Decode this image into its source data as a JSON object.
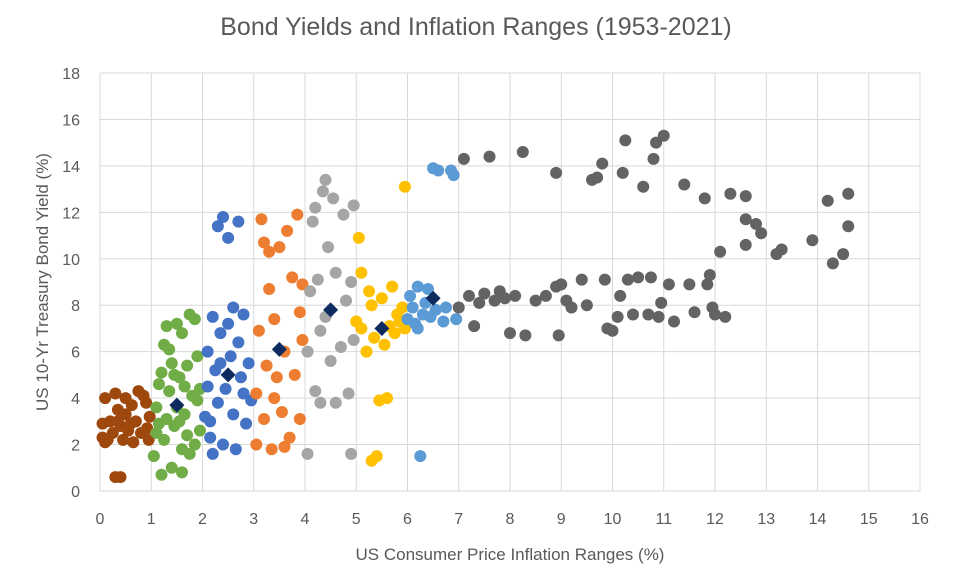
{
  "chart_data": {
    "type": "scatter",
    "title": "Bond Yields and Inflation Ranges (1953-2021)",
    "xlabel": "US Consumer Price Inflation Ranges (%)",
    "ylabel": "US 10-Yr Treasury Bond Yield (%)",
    "xlim": [
      0,
      16
    ],
    "ylim": [
      0,
      18
    ],
    "xticks": [
      "0",
      "1",
      "2",
      "3",
      "4",
      "5",
      "6",
      "7",
      "8",
      "9",
      "10",
      "11",
      "12",
      "13",
      "14",
      "15",
      "16"
    ],
    "yticks": [
      "0",
      "2",
      "4",
      "6",
      "8",
      "10",
      "12",
      "14",
      "16",
      "18"
    ],
    "grid": true,
    "legend": "none",
    "colors": {
      "brown": "#9e480e",
      "green": "#70ad47",
      "blue": "#4472c4",
      "orange": "#ed7d31",
      "gray": "#a5a5a5",
      "yellow": "#ffc000",
      "lightblue": "#5b9bd5",
      "darkgray": "#636363",
      "median": "#0d2b5e"
    },
    "series": [
      {
        "color_key": "brown",
        "marker": "circle",
        "points": [
          [
            0.05,
            2.3
          ],
          [
            0.05,
            2.9
          ],
          [
            0.1,
            4.0
          ],
          [
            0.15,
            2.2
          ],
          [
            0.2,
            3.0
          ],
          [
            0.25,
            2.5
          ],
          [
            0.3,
            4.2
          ],
          [
            0.35,
            3.5
          ],
          [
            0.4,
            2.8
          ],
          [
            0.45,
            2.2
          ],
          [
            0.5,
            3.3
          ],
          [
            0.55,
            2.6
          ],
          [
            0.6,
            2.9
          ],
          [
            0.62,
            3.7
          ],
          [
            0.65,
            2.1
          ],
          [
            0.7,
            3.0
          ],
          [
            0.75,
            4.3
          ],
          [
            0.8,
            2.5
          ],
          [
            0.85,
            4.1
          ],
          [
            0.9,
            3.8
          ],
          [
            0.92,
            2.7
          ],
          [
            0.95,
            2.2
          ],
          [
            0.97,
            3.2
          ],
          [
            0.3,
            0.6
          ],
          [
            0.4,
            0.6
          ],
          [
            0.35,
            3.0
          ],
          [
            0.1,
            2.1
          ],
          [
            0.5,
            4.0
          ]
        ]
      },
      {
        "color_key": "green",
        "marker": "circle",
        "points": [
          [
            1.05,
            1.5
          ],
          [
            1.1,
            2.5
          ],
          [
            1.1,
            3.6
          ],
          [
            1.15,
            4.6
          ],
          [
            1.2,
            0.7
          ],
          [
            1.2,
            5.1
          ],
          [
            1.25,
            2.2
          ],
          [
            1.3,
            3.1
          ],
          [
            1.3,
            7.1
          ],
          [
            1.35,
            4.3
          ],
          [
            1.4,
            1.0
          ],
          [
            1.4,
            5.5
          ],
          [
            1.45,
            2.8
          ],
          [
            1.5,
            3.6
          ],
          [
            1.5,
            7.2
          ],
          [
            1.55,
            4.9
          ],
          [
            1.6,
            1.8
          ],
          [
            1.6,
            0.8
          ],
          [
            1.65,
            3.3
          ],
          [
            1.7,
            2.4
          ],
          [
            1.7,
            5.4
          ],
          [
            1.75,
            7.6
          ],
          [
            1.8,
            4.1
          ],
          [
            1.85,
            2.0
          ],
          [
            1.85,
            7.4
          ],
          [
            1.9,
            3.9
          ],
          [
            1.9,
            5.8
          ],
          [
            1.95,
            2.6
          ],
          [
            1.95,
            4.4
          ],
          [
            1.25,
            6.3
          ],
          [
            1.35,
            6.1
          ],
          [
            1.55,
            3.0
          ],
          [
            1.65,
            4.5
          ],
          [
            1.75,
            1.6
          ],
          [
            1.15,
            2.9
          ],
          [
            1.45,
            5.0
          ],
          [
            1.6,
            6.8
          ]
        ]
      },
      {
        "color_key": "blue",
        "marker": "circle",
        "points": [
          [
            2.05,
            3.2
          ],
          [
            2.1,
            4.5
          ],
          [
            2.1,
            6.0
          ],
          [
            2.15,
            2.3
          ],
          [
            2.2,
            7.5
          ],
          [
            2.25,
            5.2
          ],
          [
            2.3,
            3.8
          ],
          [
            2.3,
            11.4
          ],
          [
            2.35,
            6.8
          ],
          [
            2.4,
            2.0
          ],
          [
            2.4,
            11.8
          ],
          [
            2.45,
            4.4
          ],
          [
            2.5,
            10.9
          ],
          [
            2.5,
            7.2
          ],
          [
            2.55,
            5.8
          ],
          [
            2.6,
            3.3
          ],
          [
            2.65,
            1.8
          ],
          [
            2.7,
            6.4
          ],
          [
            2.7,
            11.6
          ],
          [
            2.75,
            4.9
          ],
          [
            2.8,
            7.6
          ],
          [
            2.85,
            2.9
          ],
          [
            2.9,
            5.5
          ],
          [
            2.95,
            3.9
          ],
          [
            2.2,
            1.6
          ],
          [
            2.6,
            7.9
          ],
          [
            2.8,
            4.2
          ],
          [
            2.35,
            5.5
          ],
          [
            2.15,
            3.0
          ]
        ]
      },
      {
        "color_key": "orange",
        "marker": "circle",
        "points": [
          [
            3.05,
            2.0
          ],
          [
            3.05,
            4.2
          ],
          [
            3.1,
            6.9
          ],
          [
            3.15,
            11.7
          ],
          [
            3.2,
            3.1
          ],
          [
            3.25,
            5.4
          ],
          [
            3.3,
            8.7
          ],
          [
            3.3,
            10.3
          ],
          [
            3.35,
            1.8
          ],
          [
            3.4,
            7.4
          ],
          [
            3.45,
            4.9
          ],
          [
            3.5,
            10.5
          ],
          [
            3.55,
            3.4
          ],
          [
            3.6,
            6.0
          ],
          [
            3.65,
            11.2
          ],
          [
            3.7,
            2.3
          ],
          [
            3.75,
            9.2
          ],
          [
            3.8,
            5.0
          ],
          [
            3.85,
            11.9
          ],
          [
            3.9,
            7.7
          ],
          [
            3.9,
            3.1
          ],
          [
            3.95,
            6.5
          ],
          [
            3.95,
            8.9
          ],
          [
            3.2,
            10.7
          ],
          [
            3.6,
            1.9
          ],
          [
            3.4,
            4.0
          ]
        ]
      },
      {
        "color_key": "gray",
        "marker": "circle",
        "points": [
          [
            4.05,
            1.6
          ],
          [
            4.05,
            6.0
          ],
          [
            4.1,
            8.6
          ],
          [
            4.15,
            11.6
          ],
          [
            4.2,
            4.3
          ],
          [
            4.25,
            9.1
          ],
          [
            4.3,
            3.8
          ],
          [
            4.35,
            12.9
          ],
          [
            4.4,
            13.4
          ],
          [
            4.4,
            7.5
          ],
          [
            4.45,
            10.5
          ],
          [
            4.5,
            5.6
          ],
          [
            4.55,
            12.6
          ],
          [
            4.6,
            9.4
          ],
          [
            4.7,
            6.2
          ],
          [
            4.75,
            11.9
          ],
          [
            4.8,
            8.2
          ],
          [
            4.85,
            4.2
          ],
          [
            4.9,
            1.6
          ],
          [
            4.95,
            12.3
          ],
          [
            4.95,
            6.5
          ],
          [
            4.9,
            9.0
          ],
          [
            4.2,
            12.2
          ],
          [
            4.6,
            3.8
          ],
          [
            4.3,
            6.9
          ]
        ]
      },
      {
        "color_key": "yellow",
        "marker": "circle",
        "points": [
          [
            5.0,
            7.3
          ],
          [
            5.05,
            10.9
          ],
          [
            5.1,
            9.4
          ],
          [
            5.2,
            6.0
          ],
          [
            5.25,
            8.6
          ],
          [
            5.3,
            1.3
          ],
          [
            5.35,
            6.6
          ],
          [
            5.4,
            1.5
          ],
          [
            5.45,
            3.9
          ],
          [
            5.5,
            8.3
          ],
          [
            5.55,
            6.3
          ],
          [
            5.6,
            4.0
          ],
          [
            5.65,
            7.1
          ],
          [
            5.7,
            8.8
          ],
          [
            5.75,
            6.8
          ],
          [
            5.8,
            7.6
          ],
          [
            5.85,
            7.3
          ],
          [
            5.9,
            7.9
          ],
          [
            5.95,
            13.1
          ],
          [
            5.95,
            7.0
          ],
          [
            5.3,
            8.0
          ],
          [
            5.1,
            7.0
          ]
        ]
      },
      {
        "color_key": "lightblue",
        "marker": "circle",
        "points": [
          [
            6.0,
            7.4
          ],
          [
            6.05,
            8.4
          ],
          [
            6.1,
            7.9
          ],
          [
            6.15,
            7.2
          ],
          [
            6.2,
            8.8
          ],
          [
            6.25,
            1.5
          ],
          [
            6.3,
            7.6
          ],
          [
            6.35,
            8.1
          ],
          [
            6.4,
            8.7
          ],
          [
            6.45,
            7.5
          ],
          [
            6.5,
            13.9
          ],
          [
            6.6,
            13.8
          ],
          [
            6.7,
            7.3
          ],
          [
            6.75,
            7.9
          ],
          [
            6.85,
            13.8
          ],
          [
            6.9,
            13.6
          ],
          [
            6.95,
            7.4
          ],
          [
            6.55,
            7.8
          ],
          [
            6.2,
            7.0
          ]
        ]
      },
      {
        "color_key": "darkgray",
        "marker": "circle",
        "points": [
          [
            7.0,
            7.9
          ],
          [
            7.1,
            14.3
          ],
          [
            7.2,
            8.4
          ],
          [
            7.3,
            7.1
          ],
          [
            7.4,
            8.1
          ],
          [
            7.5,
            8.5
          ],
          [
            7.6,
            14.4
          ],
          [
            7.7,
            8.2
          ],
          [
            7.8,
            8.6
          ],
          [
            7.9,
            8.3
          ],
          [
            8.0,
            6.8
          ],
          [
            8.1,
            8.4
          ],
          [
            8.25,
            14.6
          ],
          [
            8.3,
            6.7
          ],
          [
            8.5,
            8.2
          ],
          [
            8.7,
            8.4
          ],
          [
            8.9,
            8.8
          ],
          [
            8.9,
            13.7
          ],
          [
            8.95,
            6.7
          ],
          [
            9.0,
            8.9
          ],
          [
            9.1,
            8.2
          ],
          [
            9.2,
            7.9
          ],
          [
            9.4,
            9.1
          ],
          [
            9.5,
            8.0
          ],
          [
            9.6,
            13.4
          ],
          [
            9.7,
            13.5
          ],
          [
            9.8,
            14.1
          ],
          [
            9.85,
            9.1
          ],
          [
            9.9,
            7.0
          ],
          [
            10.0,
            6.9
          ],
          [
            10.1,
            7.5
          ],
          [
            10.15,
            8.4
          ],
          [
            10.2,
            13.7
          ],
          [
            10.25,
            15.1
          ],
          [
            10.3,
            9.1
          ],
          [
            10.4,
            7.6
          ],
          [
            10.5,
            9.2
          ],
          [
            10.6,
            13.1
          ],
          [
            10.7,
            7.6
          ],
          [
            10.75,
            9.2
          ],
          [
            10.8,
            14.3
          ],
          [
            10.85,
            15.0
          ],
          [
            10.9,
            7.5
          ],
          [
            10.95,
            8.1
          ],
          [
            11.0,
            15.3
          ],
          [
            11.1,
            8.9
          ],
          [
            11.2,
            7.3
          ],
          [
            11.4,
            13.2
          ],
          [
            11.5,
            8.9
          ],
          [
            11.6,
            7.7
          ],
          [
            11.8,
            12.6
          ],
          [
            11.85,
            8.9
          ],
          [
            11.9,
            9.3
          ],
          [
            11.95,
            7.9
          ],
          [
            12.0,
            7.6
          ],
          [
            12.1,
            10.3
          ],
          [
            12.2,
            7.5
          ],
          [
            12.3,
            12.8
          ],
          [
            12.6,
            10.6
          ],
          [
            12.6,
            12.7
          ],
          [
            12.6,
            11.7
          ],
          [
            12.8,
            11.5
          ],
          [
            12.9,
            11.1
          ],
          [
            13.2,
            10.2
          ],
          [
            13.3,
            10.4
          ],
          [
            13.9,
            10.8
          ],
          [
            14.2,
            12.5
          ],
          [
            14.3,
            9.8
          ],
          [
            14.5,
            10.2
          ],
          [
            14.6,
            12.8
          ],
          [
            14.6,
            11.4
          ]
        ]
      },
      {
        "color_key": "median",
        "marker": "diamond",
        "points": [
          [
            1.5,
            3.7
          ],
          [
            2.5,
            5.0
          ],
          [
            3.5,
            6.1
          ],
          [
            4.5,
            7.8
          ],
          [
            5.5,
            7.0
          ],
          [
            6.5,
            8.3
          ]
        ]
      }
    ]
  }
}
